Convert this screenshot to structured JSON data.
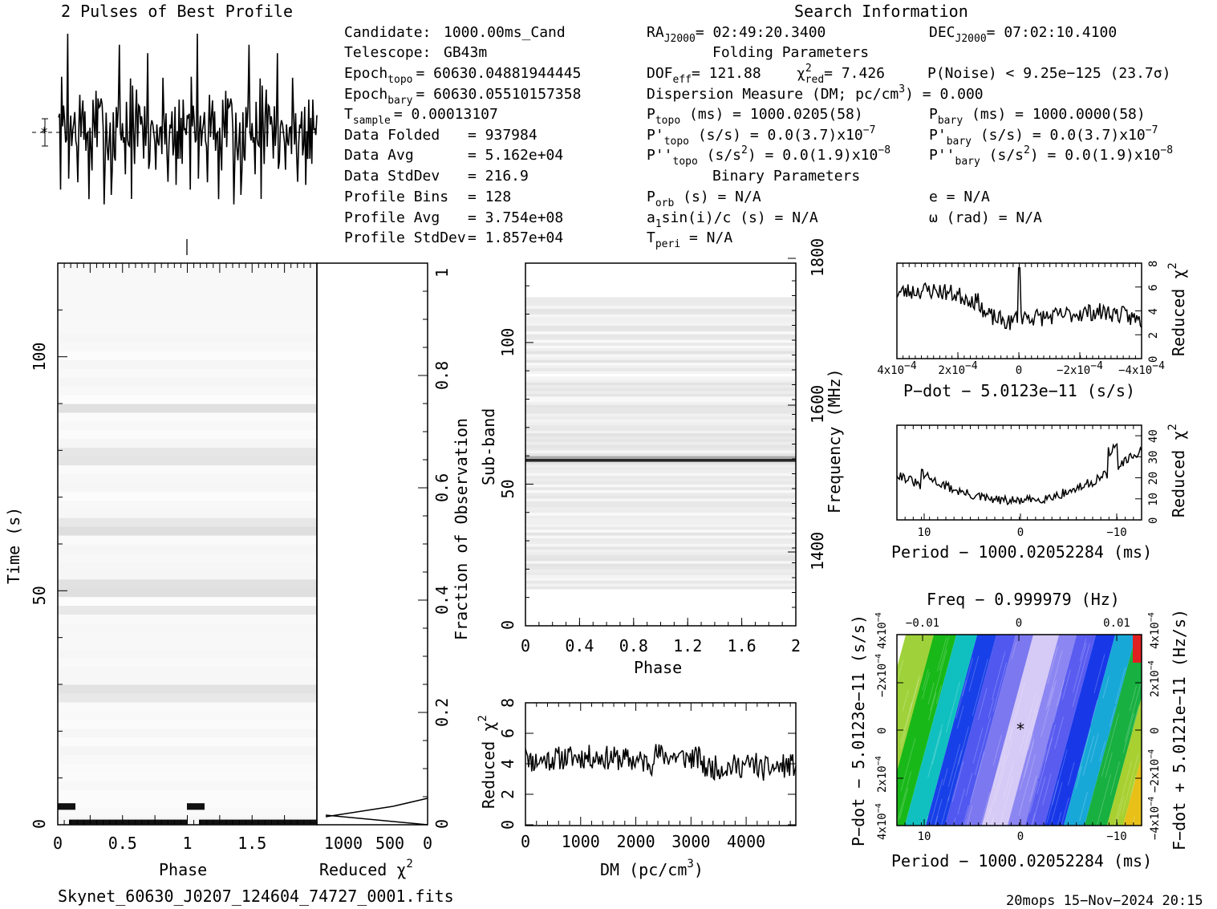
{
  "header": {
    "profile_title": "2 Pulses of Best Profile",
    "search_title": "Search Information",
    "folding_title": "Folding Parameters",
    "binary_title": "Binary Parameters"
  },
  "info_left": [
    {
      "label": "Candidate:",
      "value": "1000.00ms_Cand"
    },
    {
      "label": "Telescope:",
      "value": "GB43m"
    },
    {
      "label": "Epoch",
      "sub": "topo",
      "value": "= 60630.04881944445"
    },
    {
      "label": "Epoch",
      "sub": "bary",
      "value": "= 60630.05510157358"
    },
    {
      "label": "T",
      "sub": "sample",
      "value": "=   0.00013107"
    },
    {
      "label": "Data Folded",
      "value": "=   937984"
    },
    {
      "label": "Data Avg",
      "value": "=   5.162e+04"
    },
    {
      "label": "Data StdDev",
      "value": "=   216.9"
    },
    {
      "label": "Profile Bins",
      "value": "=   128"
    },
    {
      "label": "Profile Avg",
      "value": "=   3.754e+08"
    },
    {
      "label": "Profile StdDev",
      "value": "=   1.857e+04"
    }
  ],
  "info_mid": {
    "ra": {
      "label": "RA",
      "sub": "J2000",
      "value": "= 02:49:20.3400"
    },
    "dec": {
      "label": "DEC",
      "sub": "J2000",
      "value": "= 07:02:10.4100"
    },
    "dof": {
      "label": "DOF",
      "sub": "eff",
      "value": "= 121.88"
    },
    "chi2": {
      "label": "χ",
      "sup": "2",
      "sub": "red",
      "value": "= 7.426"
    },
    "pnoise": "P(Noise) < 9.25e−125   (23.7σ)",
    "dm": "Dispersion Measure (DM; pc/cm",
    "dm_sup": "3",
    "dm_value": ") = 0.000",
    "ptopo": {
      "label": "P",
      "sub": "topo",
      "value": " (ms) =  1000.0205(58)"
    },
    "pbary": {
      "label": "P",
      "sub": "bary",
      "value": " (ms) =  1000.0000(58)"
    },
    "pdtopo": {
      "label": "P'",
      "sub": "topo",
      "value": " (s/s) = 0.0(3.7)x10",
      "exp": "−7"
    },
    "pdbary": {
      "label": "P'",
      "sub": "bary",
      "value": " (s/s) = 0.0(3.7)x10",
      "exp": "−7"
    },
    "pddtopo": {
      "label": "P''",
      "sub": "topo",
      "value": " (s/s",
      "sup2": "2",
      "value2": ") = 0.0(1.9)x10",
      "exp": "−8"
    },
    "pddbary": {
      "label": "P''",
      "sub": "bary",
      "value": " (s/s",
      "sup2": "2",
      "value2": ") = 0.0(1.9)x10",
      "exp": "−8"
    },
    "porb": {
      "label": "P",
      "sub": "orb",
      "value": " (s) = N/A"
    },
    "a1": {
      "label": "a",
      "sub": "1",
      "value": "sin(i)/c (s) = N/A"
    },
    "tperi": {
      "label": "T",
      "sub": "peri",
      "value": " = N/A"
    },
    "ecc": "e = N/A",
    "omega": "ω (rad) = N/A"
  },
  "footer": {
    "filename": "Skynet_60630_J0207_124604_74727_0001.fits",
    "stamp": "20mops 15−Nov−2024 20:15"
  },
  "chart_data": [
    {
      "id": "profile",
      "type": "line",
      "title": "2 Pulses of Best Profile",
      "xlabel": "",
      "ylabel": "",
      "xlim": [
        0,
        2
      ],
      "description_values": "noisy profile, two repeats of 128 bins",
      "y_norm_seed": 7
    },
    {
      "id": "time_phase",
      "type": "heatmap",
      "xlabel": "Phase",
      "ylabel": "Time (s)",
      "xlim": [
        0,
        2
      ],
      "ylim": [
        0,
        120
      ],
      "xticks": [
        "0",
        "0.5",
        "1",
        "1.5"
      ],
      "yticks": [
        "0",
        "50",
        "100"
      ],
      "dark_row_times_s": [
        0.5,
        2,
        63,
        27,
        78,
        88
      ],
      "right_axis_label": "Fraction of Observation",
      "right_ticks": [
        "0.2",
        "0.4",
        "0.6",
        "0.8",
        "1"
      ]
    },
    {
      "id": "time_chi2",
      "type": "line",
      "xlabel": "Reduced χ",
      "xlabel_sup": "2",
      "xticks": [
        "1000",
        "500",
        "0"
      ],
      "y": [
        0,
        0.005,
        0.01,
        0.02
      ],
      "x": [
        1200,
        680,
        290,
        0
      ]
    },
    {
      "id": "subband_phase",
      "type": "heatmap",
      "xlabel": "Phase",
      "ylabel": "Sub-band",
      "right_label": "Frequency (MHz)",
      "xlim": [
        0,
        2
      ],
      "ylim": [
        0,
        128
      ],
      "xticks": [
        "0",
        "0.4",
        "0.8",
        "1.2",
        "1.6",
        "2"
      ],
      "yticks": [
        "0",
        "50",
        "100"
      ],
      "freq_ticks": [
        "1400",
        "1600",
        "1800"
      ],
      "dark_band": 58,
      "occupied_bands": [
        [
          13,
          88
        ],
        [
          89,
          116
        ]
      ]
    },
    {
      "id": "dm_chi2",
      "type": "line",
      "xlabel": "DM (pc/cm",
      "xlabel_sup": "3",
      "xlabel_end": ")",
      "ylabel": "Reduced χ",
      "ylabel_sup": "2",
      "xlim": [
        0,
        4900
      ],
      "ylim": [
        0,
        8
      ],
      "xticks": [
        "0",
        "1000",
        "2000",
        "3000",
        "4000"
      ],
      "yticks": [
        "0",
        "2",
        "4",
        "6",
        "8"
      ],
      "seed": 11
    },
    {
      "id": "pdot_chi2",
      "type": "line",
      "xlabel": "P−dot − 5.0123e−11 (s/s)",
      "ylabel": "Reduced χ",
      "ylabel_sup": "2",
      "xticks": [
        "4x10",
        "2x10",
        "0",
        "−2x10",
        "−4x10"
      ],
      "xtick_exp": "−4",
      "yticks": [
        "0",
        "2",
        "4",
        "6",
        "8"
      ],
      "ylim": [
        0,
        8
      ],
      "seed": 23
    },
    {
      "id": "period_chi2",
      "type": "line",
      "xlabel": "Period − 1000.02052284 (ms)",
      "ylabel": "Reduced χ",
      "ylabel_sup": "2",
      "xticks": [
        "10",
        "0",
        "−10"
      ],
      "yticks": [
        "0",
        "10",
        "20",
        "30",
        "40"
      ],
      "ylim": [
        0,
        45
      ],
      "seed": 31
    },
    {
      "id": "pdot_period",
      "type": "heatmap",
      "title": "Freq − 0.999979 (Hz)",
      "xlabel": "Period − 1000.02052284 (ms)",
      "ylabel": "P−dot − 5.0123e−11 (s/s)",
      "right_label": "F−dot + 5.0121e−11 (Hz/s)",
      "xticks": [
        "10",
        "0",
        "−10"
      ],
      "top_ticks": [
        "−0.01",
        "0",
        "0.01"
      ],
      "yticks": [
        "4x10",
        "2x10",
        "0",
        "−2x10",
        "4x10"
      ],
      "ytick_exp": "−4",
      "right_ticks": [
        "−4x10",
        "−2x10",
        "0",
        "2x10",
        "4x10"
      ],
      "colors": [
        "#1aa01a",
        "#00d0c8",
        "#0a40f0",
        "#5a5af0",
        "#9a9af8",
        "#d0c0f0",
        "#f0e0ff"
      ]
    }
  ]
}
